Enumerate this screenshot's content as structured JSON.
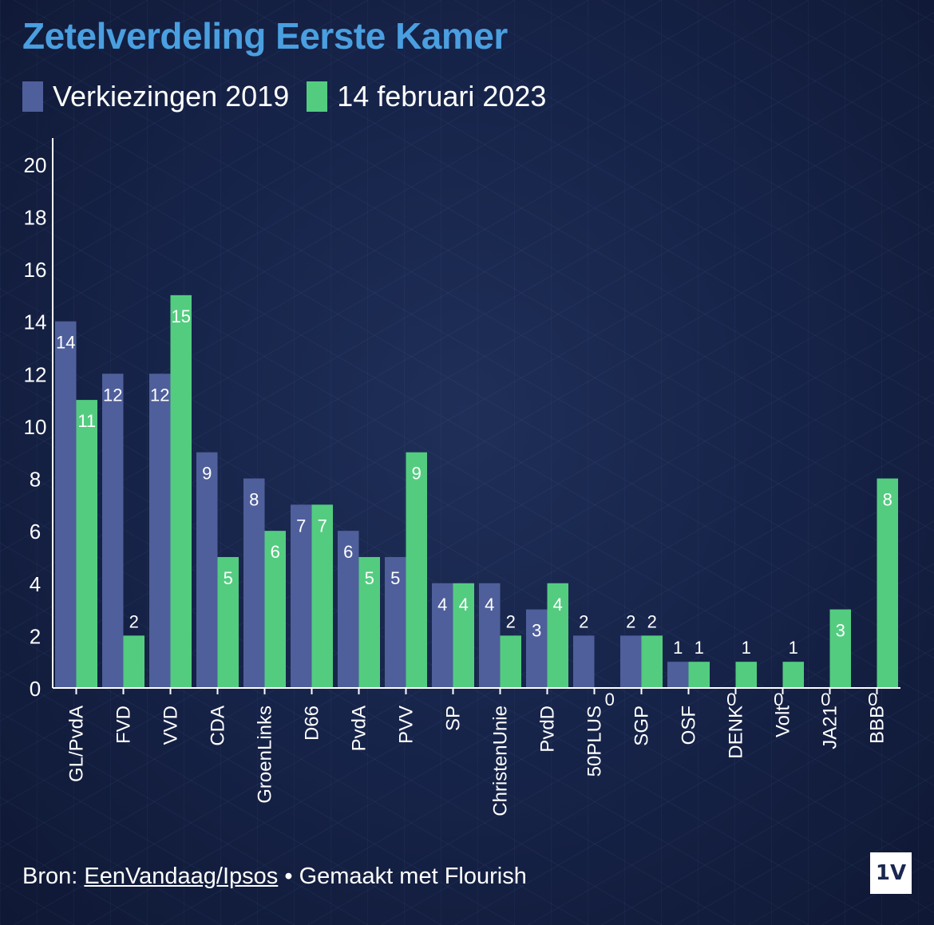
{
  "chart_data": {
    "type": "bar",
    "title": "Zetelverdeling Eerste Kamer",
    "xlabel": "",
    "ylabel": "",
    "ylim": [
      0,
      21
    ],
    "yticks": [
      "0",
      "2",
      "4",
      "6",
      "8",
      "10",
      "12",
      "14",
      "16",
      "18",
      "20"
    ],
    "categories": [
      "GL/PvdA",
      "FVD",
      "VVD",
      "CDA",
      "GroenLinks",
      "D66",
      "PvdA",
      "PVV",
      "SP",
      "ChristenUnie",
      "PvdD",
      "50PLUS",
      "SGP",
      "OSF",
      "DENK",
      "Volt",
      "JA21",
      "BBB"
    ],
    "series": [
      {
        "name": "Verkiezingen 2019",
        "color": "#4f5f9b",
        "values": [
          14,
          12,
          12,
          9,
          8,
          7,
          6,
          5,
          4,
          4,
          3,
          2,
          2,
          1,
          0,
          0,
          0,
          0
        ]
      },
      {
        "name": "14 februari 2023",
        "color": "#53cc80",
        "values": [
          11,
          2,
          15,
          5,
          6,
          7,
          5,
          9,
          4,
          2,
          4,
          0,
          2,
          1,
          1,
          1,
          3,
          8
        ]
      }
    ]
  },
  "page": {
    "title": "Zetelverdeling Eerste Kamer",
    "legend": {
      "series_2019": "Verkiezingen 2019",
      "series_2023": "14 februari 2023",
      "color_2019": "#4f5f9b",
      "color_2023": "#53cc80"
    },
    "footer": {
      "prefix": "Bron: ",
      "source_link": "EenVandaag/Ipsos",
      "suffix": " • Gemaakt met Flourish"
    },
    "logo": "1V"
  }
}
